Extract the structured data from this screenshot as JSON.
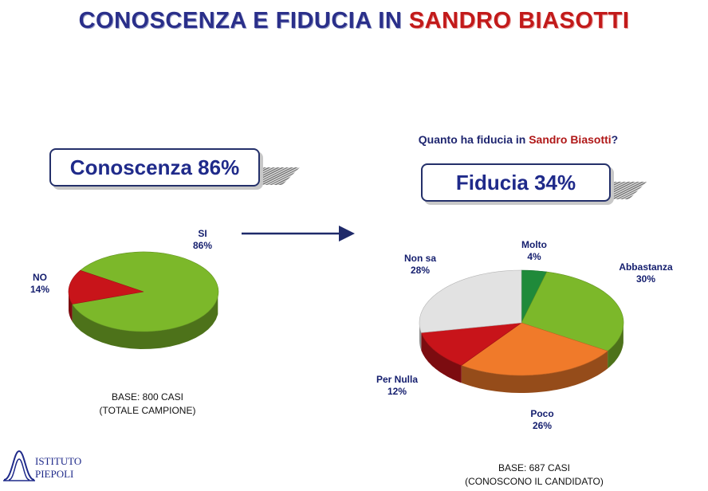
{
  "title": {
    "part1": "CONOSCENZA E FIDUCIA IN ",
    "part2": "SANDRO BIASOTTI"
  },
  "question": {
    "part1": "Quanto ha fiducia in ",
    "name": "Sandro Biasotti",
    "end": "?"
  },
  "left_box": "Conoscenza 86%",
  "right_box": "Fiducia 34%",
  "left_base": {
    "line1": "BASE: 800 CASI",
    "line2": "(TOTALE CAMPIONE)"
  },
  "right_base": {
    "line1": "BASE: 687 CASI",
    "line2": "(CONOSCONO IL CANDIDATO)"
  },
  "logo": {
    "line1": "ISTITUTO",
    "line2": "PIEPOLI"
  },
  "chart_data": [
    {
      "type": "pie",
      "title": "Conoscenza 86%",
      "slices": [
        {
          "label": "SI",
          "value": 86,
          "pct": "86%",
          "color": "#7cb82a"
        },
        {
          "label": "NO",
          "value": 14,
          "pct": "14%",
          "color": "#c8141a"
        }
      ]
    },
    {
      "type": "pie",
      "title": "Fiducia 34%",
      "slices": [
        {
          "label": "Molto",
          "value": 4,
          "pct": "4%",
          "color": "#1f8a3a"
        },
        {
          "label": "Abbastanza",
          "value": 30,
          "pct": "30%",
          "color": "#7cb82a"
        },
        {
          "label": "Poco",
          "value": 26,
          "pct": "26%",
          "color": "#f07a2a"
        },
        {
          "label": "Per Nulla",
          "value": 12,
          "pct": "12%",
          "color": "#c8141a"
        },
        {
          "label": "Non sa",
          "value": 28,
          "pct": "28%",
          "color": "#e2e2e2"
        }
      ]
    }
  ]
}
